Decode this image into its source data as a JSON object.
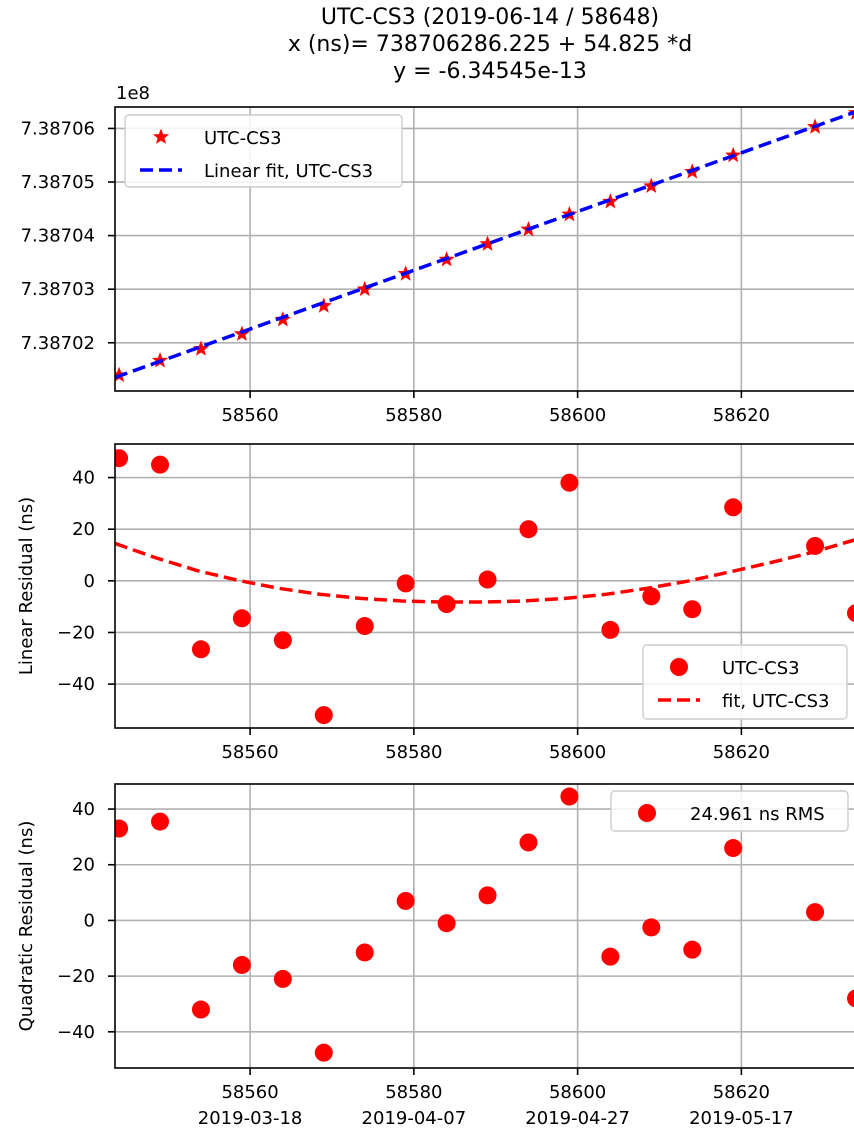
{
  "title_lines": [
    "UTC-CS3 (2019-06-14 / 58648)",
    "x (ns)= 738706286.225 + 54.825 *d",
    "y = -6.34545e-13"
  ],
  "chart_data": [
    {
      "type": "line",
      "offset_label": "1e8",
      "xlabel": "",
      "ylabel": "",
      "xlim": [
        58543.5,
        58634
      ],
      "ylim": [
        738701100.0,
        738706400.0
      ],
      "xticks": [
        58560,
        58580,
        58600,
        58620
      ],
      "xtick_labels": [
        "58560",
        "58580",
        "58600",
        "58620"
      ],
      "yticks": [
        738702000.0,
        738703000.0,
        738704000.0,
        738705000.0,
        738706000.0
      ],
      "ytick_labels": [
        "7.38702",
        "7.38703",
        "7.38704",
        "7.38705",
        "7.38706"
      ],
      "grid": true,
      "legend_position": "upper-left",
      "series": [
        {
          "name": "UTC-CS3",
          "marker": "star",
          "color": "#ff0000",
          "x": [
            58544,
            58549,
            58554,
            58559,
            58564,
            58569,
            58574,
            58579,
            58584,
            58589,
            58594,
            58599,
            58604,
            58609,
            58614,
            58619,
            58629,
            58634
          ],
          "y": [
            738701395,
            738701666,
            738701885,
            738702163,
            738702433,
            738702689,
            738702999,
            738703287,
            738703554,
            738703843,
            738704115,
            738704395,
            738704635,
            738704924,
            738705192,
            738705498,
            738706028,
            738706289
          ]
        },
        {
          "name": "Linear fit, UTC-CS3",
          "style": "dashed",
          "color": "#0000ff",
          "x": [
            58543.5,
            58634
          ],
          "y": [
            738701352,
            738706313
          ]
        }
      ]
    },
    {
      "type": "scatter",
      "xlabel": "",
      "ylabel": "Linear Residual (ns)",
      "xlim": [
        58543.5,
        58634
      ],
      "ylim": [
        -57,
        53
      ],
      "xticks": [
        58560,
        58580,
        58600,
        58620
      ],
      "xtick_labels": [
        "58560",
        "58580",
        "58600",
        "58620"
      ],
      "yticks": [
        -40,
        -20,
        0,
        20,
        40
      ],
      "ytick_labels": [
        "−40",
        "−20",
        "0",
        "20",
        "40"
      ],
      "grid": true,
      "legend_position": "lower-right",
      "series": [
        {
          "name": "UTC-CS3",
          "marker": "circle",
          "color": "#ff0000",
          "x": [
            58544,
            58549,
            58554,
            58559,
            58564,
            58569,
            58574,
            58579,
            58584,
            58589,
            58594,
            58599,
            58604,
            58609,
            58614,
            58619,
            58629,
            58634
          ],
          "y": [
            47.5,
            45,
            -26.5,
            -14.5,
            -23,
            -52,
            -17.5,
            -1,
            -9,
            0.5,
            20,
            38,
            -19,
            -6,
            -11,
            28.5,
            13.5,
            -12.5
          ]
        },
        {
          "name": "fit, UTC-CS3",
          "style": "dashed",
          "color": "#ff0000",
          "x": [
            58543.5,
            58548.5,
            58553.5,
            58558.5,
            58563.5,
            58568.5,
            58573.5,
            58578.5,
            58583.5,
            58588.5,
            58593.5,
            58598.5,
            58603.5,
            58608.5,
            58613.5,
            58618.5,
            58623.5,
            58628.5,
            58634
          ],
          "y": [
            14.5,
            8.9,
            4.0,
            0.2,
            -2.9,
            -5.2,
            -6.8,
            -7.8,
            -8.2,
            -8.2,
            -7.8,
            -6.8,
            -5.2,
            -2.9,
            -0.1,
            3.4,
            7.0,
            10.9,
            16.0
          ]
        }
      ]
    },
    {
      "type": "scatter",
      "xlabel": "",
      "ylabel": "Quadratic Residual (ns)",
      "xlim": [
        58543.5,
        58634
      ],
      "ylim": [
        -53,
        49
      ],
      "xticks": [
        58560,
        58580,
        58600,
        58620
      ],
      "xtick_labels": [
        "58560",
        "58580",
        "58600",
        "58620"
      ],
      "xtick_labels_secondary": [
        "2019-03-18",
        "2019-04-07",
        "2019-04-27",
        "2019-05-17"
      ],
      "yticks": [
        -40,
        -20,
        0,
        20,
        40
      ],
      "ytick_labels": [
        "−40",
        "−20",
        "0",
        "20",
        "40"
      ],
      "grid": true,
      "legend_position": "upper-right",
      "series": [
        {
          "name": "24.961 ns RMS",
          "marker": "circle",
          "color": "#ff0000",
          "x": [
            58544,
            58549,
            58554,
            58559,
            58564,
            58569,
            58574,
            58579,
            58584,
            58589,
            58594,
            58599,
            58604,
            58609,
            58614,
            58619,
            58629,
            58634
          ],
          "y": [
            33,
            35.5,
            -32,
            -16,
            -21,
            -47.5,
            -11.5,
            7,
            -1,
            9,
            28,
            44.5,
            -13,
            -2.5,
            -10.5,
            26,
            3,
            -28
          ]
        }
      ]
    }
  ]
}
